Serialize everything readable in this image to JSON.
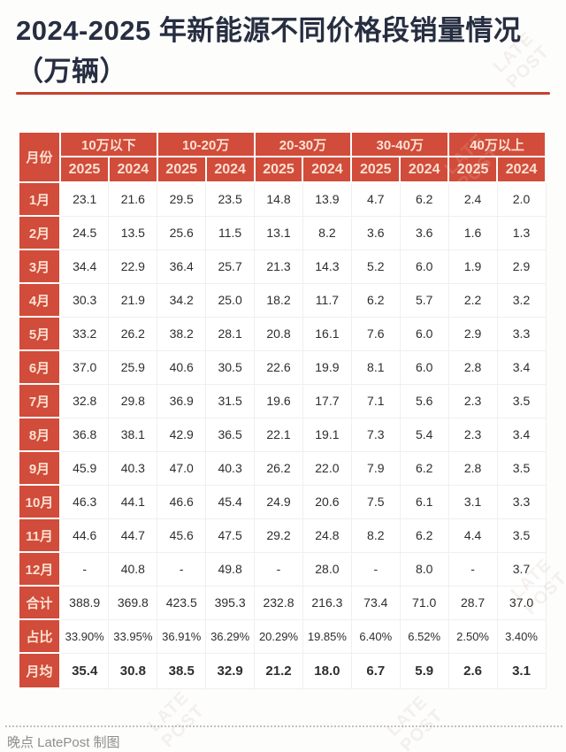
{
  "page": {
    "title": "2024-2025 年新能源不同价格段销量情况（万辆）",
    "footer_credit": "晚点 LatePost 制图",
    "watermark_text": "LATE\nPOST",
    "colors": {
      "accent_red": "#d14c3a",
      "underline_red": "#c5402f",
      "title_navy": "#272e41",
      "header_text": "#fbe1d3",
      "body_text": "#2e2e2e",
      "footer_gray": "#8d8d89"
    }
  },
  "chart_data": {
    "type": "table",
    "title": "2024-2025 年新能源不同价格段销量情况（万辆）",
    "unit": "万辆",
    "corner_header": "月份",
    "segment_headers": [
      "10万以下",
      "10-20万",
      "20-30万",
      "30-40万",
      "40万以上"
    ],
    "year_subheaders": [
      "2025",
      "2024"
    ],
    "rows": [
      {
        "label": "1月",
        "values": [
          "23.1",
          "21.6",
          "29.5",
          "23.5",
          "14.8",
          "13.9",
          "4.7",
          "6.2",
          "2.4",
          "2.0"
        ]
      },
      {
        "label": "2月",
        "values": [
          "24.5",
          "13.5",
          "25.6",
          "11.5",
          "13.1",
          "8.2",
          "3.6",
          "3.6",
          "1.6",
          "1.3"
        ]
      },
      {
        "label": "3月",
        "values": [
          "34.4",
          "22.9",
          "36.4",
          "25.7",
          "21.3",
          "14.3",
          "5.2",
          "6.0",
          "1.9",
          "2.9"
        ]
      },
      {
        "label": "4月",
        "values": [
          "30.3",
          "21.9",
          "34.2",
          "25.0",
          "18.2",
          "11.7",
          "6.2",
          "5.7",
          "2.2",
          "3.2"
        ]
      },
      {
        "label": "5月",
        "values": [
          "33.2",
          "26.2",
          "38.2",
          "28.1",
          "20.8",
          "16.1",
          "7.6",
          "6.0",
          "2.9",
          "3.3"
        ]
      },
      {
        "label": "6月",
        "values": [
          "37.0",
          "25.9",
          "40.6",
          "30.5",
          "22.6",
          "19.9",
          "8.1",
          "6.0",
          "2.8",
          "3.4"
        ]
      },
      {
        "label": "7月",
        "values": [
          "32.8",
          "29.8",
          "36.9",
          "31.5",
          "19.6",
          "17.7",
          "7.1",
          "5.6",
          "2.3",
          "3.5"
        ]
      },
      {
        "label": "8月",
        "values": [
          "36.8",
          "38.1",
          "42.9",
          "36.5",
          "22.1",
          "19.1",
          "7.3",
          "5.4",
          "2.3",
          "3.4"
        ]
      },
      {
        "label": "9月",
        "values": [
          "45.9",
          "40.3",
          "47.0",
          "40.3",
          "26.2",
          "22.0",
          "7.9",
          "6.2",
          "2.8",
          "3.5"
        ]
      },
      {
        "label": "10月",
        "values": [
          "46.3",
          "44.1",
          "46.6",
          "45.4",
          "24.9",
          "20.6",
          "7.5",
          "6.1",
          "3.1",
          "3.3"
        ]
      },
      {
        "label": "11月",
        "values": [
          "44.6",
          "44.7",
          "45.6",
          "47.5",
          "29.2",
          "24.8",
          "8.2",
          "6.2",
          "4.4",
          "3.5"
        ]
      },
      {
        "label": "12月",
        "values": [
          "-",
          "40.8",
          "-",
          "49.8",
          "-",
          "28.0",
          "-",
          "8.0",
          "-",
          "3.7"
        ]
      }
    ],
    "summary_rows": [
      {
        "label": "合计",
        "style": "total",
        "values": [
          "388.9",
          "369.8",
          "423.5",
          "395.3",
          "232.8",
          "216.3",
          "73.4",
          "71.0",
          "28.7",
          "37.0"
        ]
      },
      {
        "label": "占比",
        "style": "percent",
        "values": [
          "33.90%",
          "33.95%",
          "36.91%",
          "36.29%",
          "20.29%",
          "19.85%",
          "6.40%",
          "6.52%",
          "2.50%",
          "3.40%"
        ]
      },
      {
        "label": "月均",
        "style": "average",
        "values": [
          "35.4",
          "30.8",
          "38.5",
          "32.9",
          "21.2",
          "18.0",
          "6.7",
          "5.9",
          "2.6",
          "3.1"
        ]
      }
    ]
  }
}
